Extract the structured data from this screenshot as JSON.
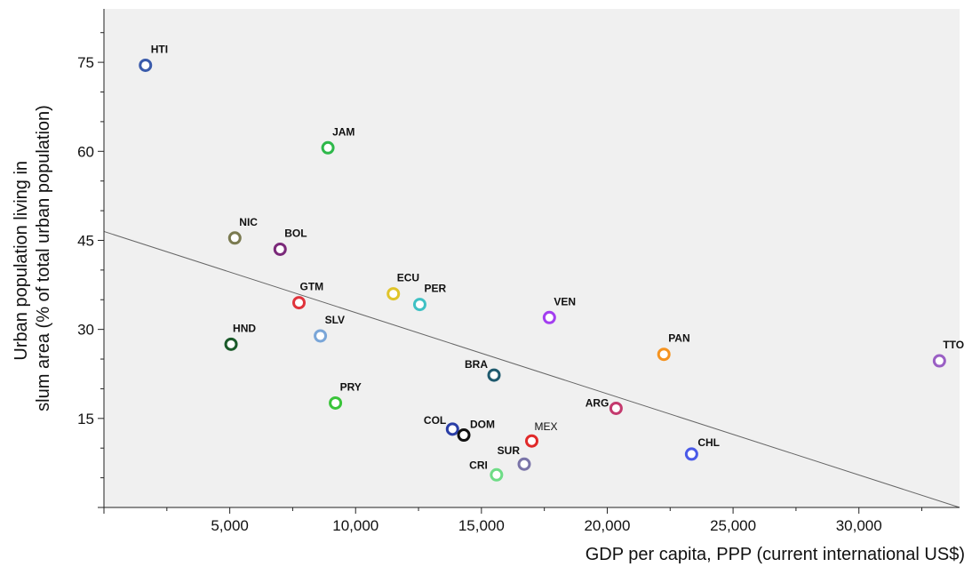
{
  "chart_data": {
    "type": "scatter",
    "title": "",
    "xlabel": "GDP per capita, PPP (current international US$)",
    "ylabel_lines": [
      "Urban population living in",
      "slum area (% of total urban population)"
    ],
    "xlim": [
      0,
      34000
    ],
    "ylim": [
      0,
      84
    ],
    "x_ticks": [
      5000,
      10000,
      15000,
      20000,
      25000,
      30000
    ],
    "x_tick_labels": [
      "5,000",
      "10,000",
      "15,000",
      "20,000",
      "25,000",
      "30,000"
    ],
    "y_ticks": [
      15,
      30,
      45,
      60,
      75
    ],
    "y_tick_labels": [
      "15",
      "30",
      "45",
      "60",
      "75"
    ],
    "grid": false,
    "background": "#f0f0f0",
    "trendline": {
      "x": [
        0,
        34000
      ],
      "y": [
        46.5,
        0
      ],
      "color": "#666666"
    },
    "points": [
      {
        "label": "HTI",
        "x": 1650,
        "y": 74.5,
        "color": "#3a5bab"
      },
      {
        "label": "JAM",
        "x": 8900,
        "y": 60.6,
        "color": "#2eb84a"
      },
      {
        "label": "NIC",
        "x": 5200,
        "y": 45.4,
        "color": "#7a7a50"
      },
      {
        "label": "BOL",
        "x": 7000,
        "y": 43.5,
        "color": "#7b2a7a"
      },
      {
        "label": "GTM",
        "x": 7750,
        "y": 34.5,
        "color": "#e0343c"
      },
      {
        "label": "ECU",
        "x": 11500,
        "y": 36.0,
        "color": "#e0c42a"
      },
      {
        "label": "PER",
        "x": 12550,
        "y": 34.2,
        "color": "#3fc1c4"
      },
      {
        "label": "VEN",
        "x": 17700,
        "y": 32.0,
        "color": "#a33ef0"
      },
      {
        "label": "HND",
        "x": 5050,
        "y": 27.5,
        "color": "#1a5a2a"
      },
      {
        "label": "SLV",
        "x": 8600,
        "y": 28.9,
        "color": "#7aa6d8"
      },
      {
        "label": "PAN",
        "x": 22250,
        "y": 25.8,
        "color": "#f59320"
      },
      {
        "label": "TTO",
        "x": 33200,
        "y": 24.7,
        "color": "#9a5fc4"
      },
      {
        "label": "BRA",
        "x": 15500,
        "y": 22.3,
        "color": "#1f5a6e"
      },
      {
        "label": "PRY",
        "x": 9200,
        "y": 17.6,
        "color": "#3ac43a"
      },
      {
        "label": "ARG",
        "x": 20350,
        "y": 16.7,
        "color": "#c43a6e"
      },
      {
        "label": "COL",
        "x": 13850,
        "y": 13.2,
        "color": "#2a3ea6"
      },
      {
        "label": "DOM",
        "x": 14300,
        "y": 12.2,
        "color": "#111111"
      },
      {
        "label": "MEX",
        "x": 17000,
        "y": 11.2,
        "color": "#e02a2a"
      },
      {
        "label": "CHL",
        "x": 23350,
        "y": 9.0,
        "color": "#4a5ae8"
      },
      {
        "label": "SUR",
        "x": 16700,
        "y": 7.3,
        "color": "#7a74a8"
      },
      {
        "label": "CRI",
        "x": 15600,
        "y": 5.5,
        "color": "#6edc86"
      }
    ]
  }
}
